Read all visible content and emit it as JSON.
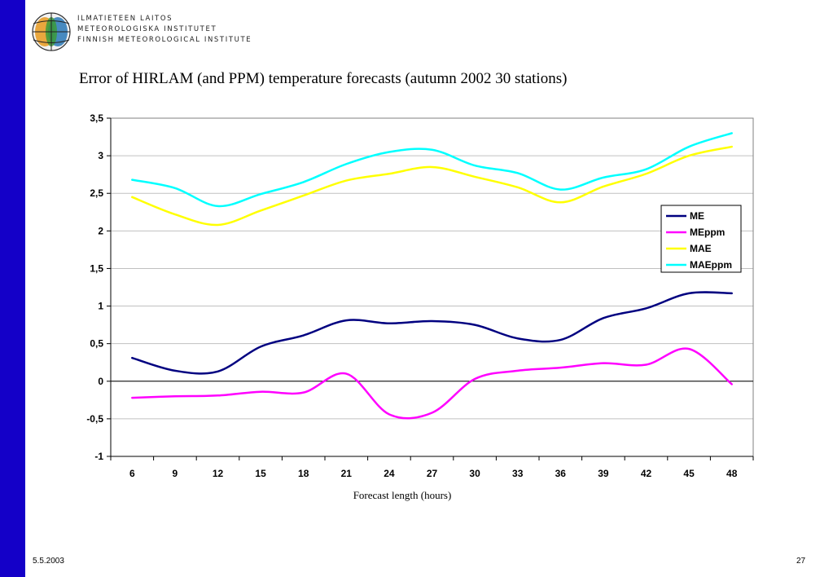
{
  "header": {
    "logo_lines": [
      "ILMATIETEEN LAITOS",
      "METEOROLOGISKA INSTITUTET",
      "FINNISH METEOROLOGICAL INSTITUTE"
    ],
    "logo_icon": "fmi-logo-icon"
  },
  "colors": {
    "left_bar": "#1400c8"
  },
  "footer": {
    "date": "5.5.2003",
    "page": "27"
  },
  "chart_data": {
    "type": "line",
    "title": "Error of HIRLAM (and PPM) temperature forecasts (autumn 2002 30 stations)",
    "xlabel": "Forecast length (hours)",
    "ylabel": "",
    "x": [
      6,
      9,
      12,
      15,
      18,
      21,
      24,
      27,
      30,
      33,
      36,
      39,
      42,
      45,
      48
    ],
    "ylim": [
      -1,
      3.5
    ],
    "yticks": [
      "3,5",
      "3",
      "2,5",
      "2",
      "1,5",
      "1",
      "0,5",
      "0",
      "-0,5",
      "-1"
    ],
    "grid": true,
    "legend": "right",
    "series": [
      {
        "name": "ME",
        "color": "#000080",
        "values": [
          0.31,
          0.14,
          0.13,
          0.46,
          0.61,
          0.81,
          0.77,
          0.8,
          0.75,
          0.57,
          0.55,
          0.84,
          0.97,
          1.17,
          1.17
        ]
      },
      {
        "name": "MEppm",
        "color": "#ff00ff",
        "values": [
          -0.22,
          -0.2,
          -0.19,
          -0.14,
          -0.15,
          0.1,
          -0.44,
          -0.42,
          0.03,
          0.14,
          0.18,
          0.24,
          0.22,
          0.43,
          -0.04
        ]
      },
      {
        "name": "MAE",
        "color": "#ffff00",
        "values": [
          2.45,
          2.22,
          2.08,
          2.27,
          2.47,
          2.67,
          2.76,
          2.85,
          2.72,
          2.58,
          2.38,
          2.59,
          2.76,
          3.0,
          3.12
        ]
      },
      {
        "name": "MAEppm",
        "color": "#00ffff",
        "values": [
          2.68,
          2.57,
          2.33,
          2.49,
          2.65,
          2.89,
          3.05,
          3.08,
          2.87,
          2.77,
          2.55,
          2.71,
          2.82,
          3.12,
          3.3
        ]
      }
    ]
  }
}
